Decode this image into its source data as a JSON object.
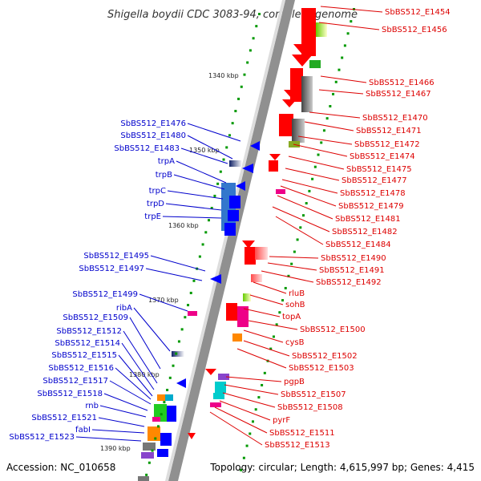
{
  "title": "Shigella boydii CDC 3083-94, complete genome",
  "accession": "Accession: NC_010658",
  "topology": "Topology: circular; Length: 4,615,997 bp; Genes: 4,415",
  "kbp_labels": [
    "1340 kbp",
    "1350 kbp",
    "1360 kbp",
    "1370 kbp",
    "1380 kbp",
    "1390 kbp"
  ],
  "right_genes": [
    "SbBS512_E1454",
    "SbBS512_E1456",
    "SbBS512_E1466",
    "SbBS512_E1467",
    "SbBS512_E1470",
    "SbBS512_E1471",
    "SbBS512_E1472",
    "SbBS512_E1474",
    "SbBS512_E1475",
    "SbBS512_E1477",
    "SbBS512_E1478",
    "SbBS512_E1479",
    "SbBS512_E1481",
    "SbBS512_E1482",
    "SbBS512_E1484",
    "SbBS512_E1490",
    "SbBS512_E1491",
    "SbBS512_E1492",
    "rluB",
    "sohB",
    "topA",
    "SbBS512_E1500",
    "cysB",
    "SbBS512_E1502",
    "SbBS512_E1503",
    "pgpB",
    "SbBS512_E1507",
    "SbBS512_E1508",
    "pyrF",
    "SbBS512_E1511",
    "SbBS512_E1513"
  ],
  "left_genes": [
    "SbBS512_E1476",
    "SbBS512_E1480",
    "SbBS512_E1483",
    "trpA",
    "trpB",
    "trpC",
    "trpD",
    "trpE",
    "SbBS512_E1495",
    "SbBS512_E1497",
    "SbBS512_E1499",
    "ribA",
    "SbBS512_E1509",
    "SbBS512_E1512",
    "SbBS512_E1514",
    "SbBS512_E1515",
    "SbBS512_E1516",
    "SbBS512_E1517",
    "SbBS512_E1518",
    "rnb",
    "SbBS512_E1521",
    "fabI",
    "SbBS512_E1523"
  ],
  "colors": {
    "forward": "#ff0000",
    "reverse": "#0000ff",
    "backbone": "#777777",
    "tick": "#009900"
  }
}
